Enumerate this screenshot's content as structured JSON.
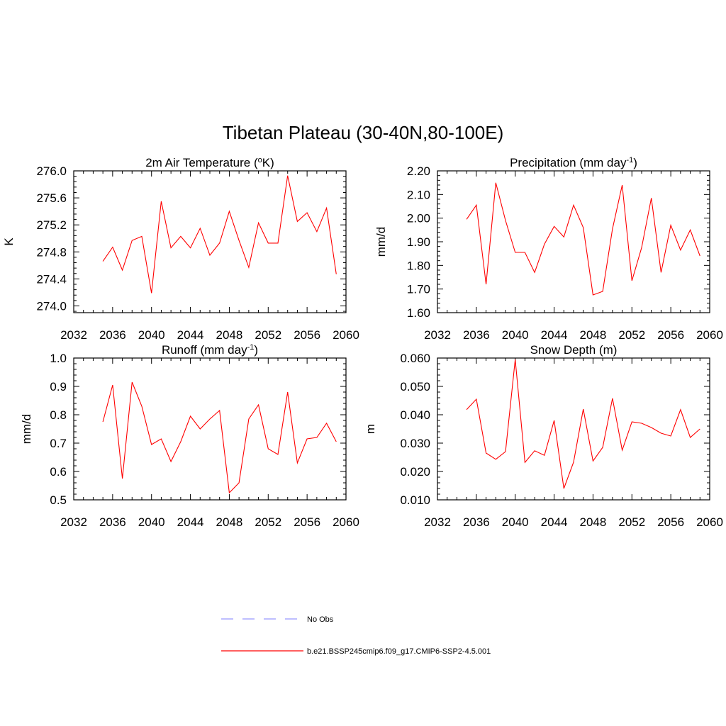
{
  "figure_title": "Tibetan Plateau (30-40N,80-100E)",
  "legend": {
    "placement": "bottom-center",
    "entries": [
      {
        "label": "No Obs",
        "color": "#9999ff",
        "style": "dashed"
      },
      {
        "label": "b.e21.BSSP245cmip6.f09_g17.CMIP6-SSP2-4.5.001",
        "color": "#ff0000",
        "style": "solid"
      }
    ]
  },
  "colors": {
    "series": "#ff0000",
    "obs": "#9999ff",
    "axes": "#000000"
  },
  "chart_data": [
    {
      "type": "line",
      "title": "2m Air Temperature (oK)",
      "title_parts": {
        "before": "2m Air Temperature (",
        "sup": "o",
        "after": "K)"
      },
      "xlabel": "",
      "ylabel": "K",
      "xlim": [
        2032,
        2060
      ],
      "ylim": [
        273.9,
        276.0
      ],
      "xticks": [
        "2032",
        "2036",
        "2040",
        "2044",
        "2048",
        "2052",
        "2056",
        "2060"
      ],
      "yticks": [
        "274.0",
        "274.4",
        "274.8",
        "275.2",
        "275.6",
        "276.0"
      ],
      "ytick_values": [
        274.0,
        274.4,
        274.8,
        275.2,
        275.6,
        276.0
      ],
      "grid": false,
      "x": [
        2035,
        2036,
        2037,
        2038,
        2039,
        2040,
        2041,
        2042,
        2043,
        2044,
        2045,
        2046,
        2047,
        2048,
        2049,
        2050,
        2051,
        2052,
        2053,
        2054,
        2055,
        2056,
        2057,
        2058,
        2059
      ],
      "series": [
        {
          "name": "b.e21.BSSP245cmip6.f09_g17.CMIP6-SSP2-4.5.001",
          "values": [
            274.66,
            274.87,
            274.53,
            274.97,
            275.03,
            274.19,
            275.55,
            274.86,
            275.03,
            274.86,
            275.15,
            274.75,
            274.93,
            275.4,
            274.97,
            274.57,
            275.23,
            274.93,
            274.93,
            275.93,
            275.25,
            275.38,
            275.1,
            275.45,
            274.47
          ]
        }
      ]
    },
    {
      "type": "line",
      "title": "Precipitation (mm day-1)",
      "title_parts": {
        "before": "Precipitation (mm day",
        "sup": "-1",
        "after": ")"
      },
      "xlabel": "",
      "ylabel": "mm/d",
      "xlim": [
        2032,
        2060
      ],
      "ylim": [
        1.6,
        2.2
      ],
      "xticks": [
        "2032",
        "2036",
        "2040",
        "2044",
        "2048",
        "2052",
        "2056",
        "2060"
      ],
      "yticks": [
        "1.60",
        "1.70",
        "1.80",
        "1.90",
        "2.00",
        "2.10",
        "2.20"
      ],
      "ytick_values": [
        1.6,
        1.7,
        1.8,
        1.9,
        2.0,
        2.1,
        2.2
      ],
      "grid": false,
      "x": [
        2035,
        2036,
        2037,
        2038,
        2039,
        2040,
        2041,
        2042,
        2043,
        2044,
        2045,
        2046,
        2047,
        2048,
        2049,
        2050,
        2051,
        2052,
        2053,
        2054,
        2055,
        2056,
        2057,
        2058,
        2059
      ],
      "series": [
        {
          "name": "b.e21.BSSP245cmip6.f09_g17.CMIP6-SSP2-4.5.001",
          "values": [
            1.995,
            2.055,
            1.72,
            2.15,
            1.99,
            1.855,
            1.855,
            1.77,
            1.89,
            1.965,
            1.92,
            2.055,
            1.96,
            1.675,
            1.69,
            1.955,
            2.14,
            1.735,
            1.875,
            2.085,
            1.77,
            1.97,
            1.865,
            1.95,
            1.84
          ]
        }
      ]
    },
    {
      "type": "line",
      "title": "Runoff (mm day-1)",
      "title_parts": {
        "before": "Runoff (mm day",
        "sup": "-1",
        "after": ")"
      },
      "xlabel": "",
      "ylabel": "mm/d",
      "xlim": [
        2032,
        2060
      ],
      "ylim": [
        0.5,
        1.0
      ],
      "xticks": [
        "2032",
        "2036",
        "2040",
        "2044",
        "2048",
        "2052",
        "2056",
        "2060"
      ],
      "yticks": [
        "0.5",
        "0.6",
        "0.7",
        "0.8",
        "0.9",
        "1.0"
      ],
      "ytick_values": [
        0.5,
        0.6,
        0.7,
        0.8,
        0.9,
        1.0
      ],
      "grid": false,
      "x": [
        2035,
        2036,
        2037,
        2038,
        2039,
        2040,
        2041,
        2042,
        2043,
        2044,
        2045,
        2046,
        2047,
        2048,
        2049,
        2050,
        2051,
        2052,
        2053,
        2054,
        2055,
        2056,
        2057,
        2058,
        2059
      ],
      "series": [
        {
          "name": "b.e21.BSSP245cmip6.f09_g17.CMIP6-SSP2-4.5.001",
          "values": [
            0.775,
            0.905,
            0.575,
            0.915,
            0.83,
            0.695,
            0.715,
            0.635,
            0.705,
            0.795,
            0.75,
            0.785,
            0.815,
            0.525,
            0.56,
            0.785,
            0.835,
            0.68,
            0.66,
            0.88,
            0.63,
            0.715,
            0.72,
            0.77,
            0.705
          ]
        }
      ]
    },
    {
      "type": "line",
      "title": "Snow Depth (m)",
      "title_parts": {
        "before": "Snow Depth (m)",
        "sup": "",
        "after": ""
      },
      "xlabel": "",
      "ylabel": "m",
      "xlim": [
        2032,
        2060
      ],
      "ylim": [
        0.01,
        0.06
      ],
      "xticks": [
        "2032",
        "2036",
        "2040",
        "2044",
        "2048",
        "2052",
        "2056",
        "2060"
      ],
      "yticks": [
        "0.010",
        "0.020",
        "0.030",
        "0.040",
        "0.050",
        "0.060"
      ],
      "ytick_values": [
        0.01,
        0.02,
        0.03,
        0.04,
        0.05,
        0.06
      ],
      "grid": false,
      "x": [
        2035,
        2036,
        2037,
        2038,
        2039,
        2040,
        2041,
        2042,
        2043,
        2044,
        2045,
        2046,
        2047,
        2048,
        2049,
        2050,
        2051,
        2052,
        2053,
        2054,
        2055,
        2056,
        2057,
        2058,
        2059
      ],
      "series": [
        {
          "name": "b.e21.BSSP245cmip6.f09_g17.CMIP6-SSP2-4.5.001",
          "values": [
            0.0418,
            0.0455,
            0.0265,
            0.0243,
            0.027,
            0.0595,
            0.0232,
            0.0273,
            0.0257,
            0.038,
            0.014,
            0.0233,
            0.042,
            0.0237,
            0.0285,
            0.0458,
            0.0275,
            0.0375,
            0.037,
            0.0355,
            0.0335,
            0.0325,
            0.0418,
            0.032,
            0.035
          ]
        }
      ]
    }
  ]
}
